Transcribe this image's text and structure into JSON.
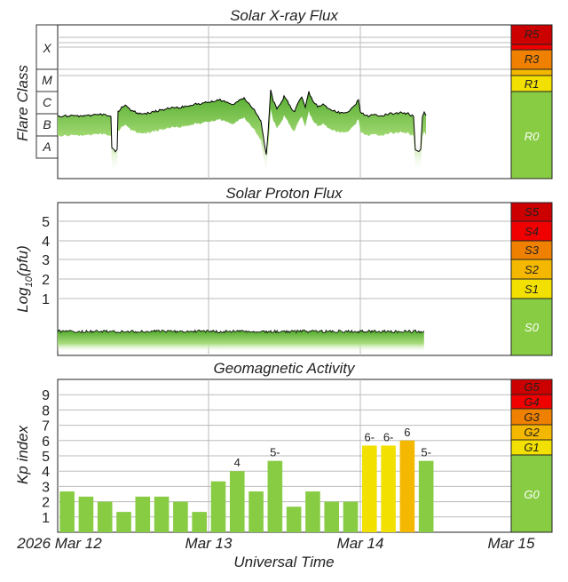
{
  "xray": {
    "title": "Solar X-ray Flux",
    "ylabel": "Flare Class",
    "class_labels": [
      "X",
      "M",
      "C",
      "B",
      "A"
    ],
    "scale": [
      {
        "label": "R5",
        "color": "#cc0000"
      },
      {
        "label": "R3",
        "color": "#f08000"
      },
      {
        "label": "R1",
        "color": "#f2e000"
      },
      {
        "label": "R0",
        "color": "#88cc44"
      }
    ]
  },
  "proton": {
    "title": "Solar Proton Flux",
    "ylabel_pre": "Log",
    "ylabel_sub": "10",
    "ylabel_post": "(pfu)",
    "ticks": [
      "1",
      "2",
      "3",
      "4",
      "5"
    ],
    "scale": [
      {
        "label": "S5",
        "color": "#cc0000"
      },
      {
        "label": "S4",
        "color": "#f00000"
      },
      {
        "label": "S3",
        "color": "#f08000"
      },
      {
        "label": "S2",
        "color": "#f5b800"
      },
      {
        "label": "S1",
        "color": "#f2e000"
      },
      {
        "label": "S0",
        "color": "#88cc44"
      }
    ]
  },
  "geomag": {
    "title": "Geomagnetic Activity",
    "ylabel": "Kp index",
    "ticks": [
      "1",
      "2",
      "3",
      "4",
      "5",
      "6",
      "7",
      "8",
      "9"
    ],
    "scale": [
      {
        "label": "G5",
        "color": "#cc0000"
      },
      {
        "label": "G4",
        "color": "#f00000"
      },
      {
        "label": "G3",
        "color": "#f08000"
      },
      {
        "label": "G2",
        "color": "#f5b800"
      },
      {
        "label": "G1",
        "color": "#f2e000"
      },
      {
        "label": "G0",
        "color": "#88cc44"
      }
    ]
  },
  "xaxis": {
    "label": "Universal Time",
    "ticks": [
      "2026 Mar 12",
      "Mar 13",
      "Mar 14",
      "Mar 15"
    ]
  },
  "chart_data": {
    "type": "bar",
    "title": "Geomagnetic Activity",
    "xlabel": "Universal Time",
    "ylabel": "Kp index",
    "ylim": [
      0,
      9
    ],
    "xlim_days": [
      "2026 Mar 12",
      "Mar 15"
    ],
    "categories": [
      "Mar 12 00-03",
      "Mar 12 03-06",
      "Mar 12 06-09",
      "Mar 12 09-12",
      "Mar 12 12-15",
      "Mar 12 15-18",
      "Mar 12 18-21",
      "Mar 12 21-24",
      "Mar 13 00-03",
      "Mar 13 03-06",
      "Mar 13 06-09",
      "Mar 13 09-12",
      "Mar 13 12-15",
      "Mar 13 15-18",
      "Mar 13 18-21",
      "Mar 13 21-24",
      "Mar 14 00-03",
      "Mar 14 03-06",
      "Mar 14 06-09",
      "Mar 14 09-12"
    ],
    "values": [
      2.67,
      2.33,
      2.0,
      1.33,
      2.33,
      2.33,
      2.0,
      1.33,
      3.33,
      4.0,
      2.67,
      4.67,
      1.67,
      2.67,
      2.0,
      2.0,
      5.67,
      5.67,
      6.0,
      4.67
    ],
    "bar_labels": [
      "",
      "",
      "",
      "",
      "",
      "",
      "",
      "",
      "",
      "4",
      "",
      "5-",
      "",
      "",
      "",
      "",
      "6-",
      "6-",
      "6",
      "5-"
    ],
    "colors": {
      "quiet": "#88cc44",
      "g1": "#f2e000",
      "g2": "#f5b800"
    }
  }
}
